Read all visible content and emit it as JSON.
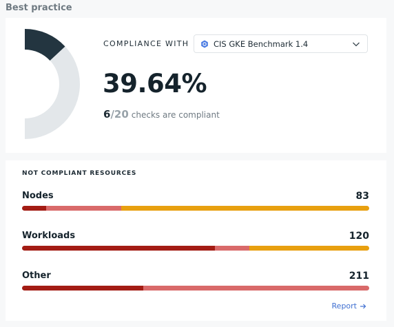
{
  "header": {
    "title": "Best practice"
  },
  "summary": {
    "compliance_label": "COMPLIANCE WITH",
    "benchmark": {
      "selected": "CIS GKE Benchmark 1.4",
      "icon": "gke-icon"
    },
    "percent_text": "39.64%",
    "percent_value": 39.64,
    "checks_passed": "6",
    "checks_separator": "/",
    "checks_total": "20",
    "checks_text": "checks are compliant"
  },
  "not_compliant": {
    "title": "NOT COMPLIANT RESOURCES",
    "rows": [
      {
        "label": "Nodes",
        "count": "83",
        "segments": [
          {
            "fraction": 0.07,
            "color": "#a31c14"
          },
          {
            "fraction": 0.215,
            "color": "#d96a6a"
          },
          {
            "fraction": 0.715,
            "color": "#e8a010"
          }
        ]
      },
      {
        "label": "Workloads",
        "count": "120",
        "segments": [
          {
            "fraction": 0.555,
            "color": "#a31c14"
          },
          {
            "fraction": 0.1,
            "color": "#d96a6a"
          },
          {
            "fraction": 0.345,
            "color": "#e8a010"
          }
        ]
      },
      {
        "label": "Other",
        "count": "211",
        "segments": [
          {
            "fraction": 0.35,
            "color": "#a31c14"
          },
          {
            "fraction": 0.65,
            "color": "#d96a6a"
          }
        ]
      }
    ],
    "report_label": "Report"
  },
  "colors": {
    "donut_fill": "#233540",
    "donut_track": "#e3e7ea",
    "link": "#3f6fd1"
  }
}
